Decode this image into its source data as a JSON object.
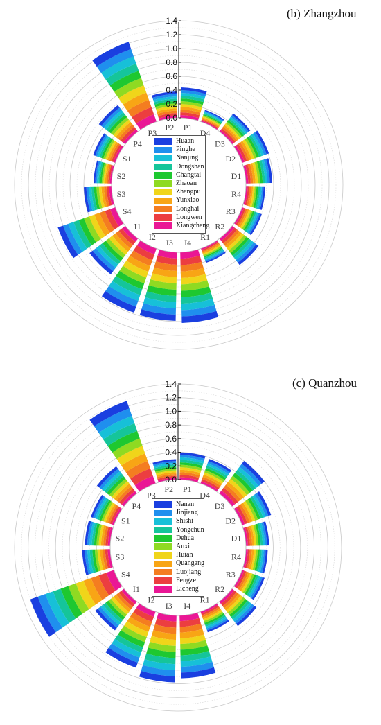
{
  "sectors": [
    "P1",
    "D4",
    "D3",
    "D2",
    "D1",
    "R4",
    "R3",
    "R2",
    "R1",
    "I4",
    "I3",
    "I2",
    "I1",
    "S4",
    "S3",
    "S2",
    "S1",
    "P4",
    "P3",
    "P2"
  ],
  "radial_ticks": [
    "0.0",
    "0.2",
    "0.4",
    "0.6",
    "0.8",
    "1.0",
    "1.2",
    "1.4"
  ],
  "chart_data": [
    {
      "type": "stacked-polar-bar",
      "title": "(b) Zhangzhou",
      "rlim": [
        0,
        1.4
      ],
      "series": [
        {
          "name": "Huaan",
          "color": "#1a3fe0"
        },
        {
          "name": "Pinghe",
          "color": "#1f8fee"
        },
        {
          "name": "Nanjing",
          "color": "#17c0d8"
        },
        {
          "name": "Dongshan",
          "color": "#15c59a"
        },
        {
          "name": "Changtai",
          "color": "#1ec830"
        },
        {
          "name": "Zhaoan",
          "color": "#8fda22"
        },
        {
          "name": "Zhangpu",
          "color": "#f0d51a"
        },
        {
          "name": "Yunxiao",
          "color": "#f8a515"
        },
        {
          "name": "Longhai",
          "color": "#f47d20"
        },
        {
          "name": "Longwen",
          "color": "#ec3e40"
        },
        {
          "name": "Xiangcheng",
          "color": "#ea1795"
        }
      ],
      "totals": {
        "P1": 0.44,
        "D4": 0.18,
        "D3": 0.33,
        "D2": 0.41,
        "D1": 0.38,
        "R4": 0.28,
        "R3": 0.3,
        "R2": 0.48,
        "R1": 0.22,
        "I4": 1.02,
        "I3": 0.99,
        "I2": 0.98,
        "I1": 0.65,
        "S4": 0.88,
        "S3": 0.4,
        "S2": 0.26,
        "S1": 0.34,
        "P4": 0.48,
        "P3": 1.22,
        "P2": 0.38
      }
    },
    {
      "type": "stacked-polar-bar",
      "title": "(c) Quanzhou",
      "rlim": [
        0,
        1.4
      ],
      "series": [
        {
          "name": "Nanan",
          "color": "#1a3fe0"
        },
        {
          "name": "Jinjiang",
          "color": "#1f8fee"
        },
        {
          "name": "Shishi",
          "color": "#17c0d8"
        },
        {
          "name": "Yongchun",
          "color": "#15c59a"
        },
        {
          "name": "Dehua",
          "color": "#1ec830"
        },
        {
          "name": "Anxi",
          "color": "#8fda22"
        },
        {
          "name": "Huian",
          "color": "#f0d51a"
        },
        {
          "name": "Quangang",
          "color": "#f8a515"
        },
        {
          "name": "Luojiang",
          "color": "#f47d20"
        },
        {
          "name": "Fengze",
          "color": "#ec3e40"
        },
        {
          "name": "Licheng",
          "color": "#ea1795"
        }
      ],
      "totals": {
        "P1": 0.4,
        "D4": 0.38,
        "D3": 0.6,
        "D2": 0.45,
        "D1": 0.34,
        "R4": 0.32,
        "R3": 0.35,
        "R2": 0.45,
        "R1": 0.32,
        "I4": 0.92,
        "I3": 0.98,
        "I2": 0.87,
        "I1": 0.53,
        "S4": 1.3,
        "S3": 0.41,
        "S2": 0.37,
        "S1": 0.36,
        "P4": 0.5,
        "P3": 1.28,
        "P2": 0.3
      }
    }
  ]
}
